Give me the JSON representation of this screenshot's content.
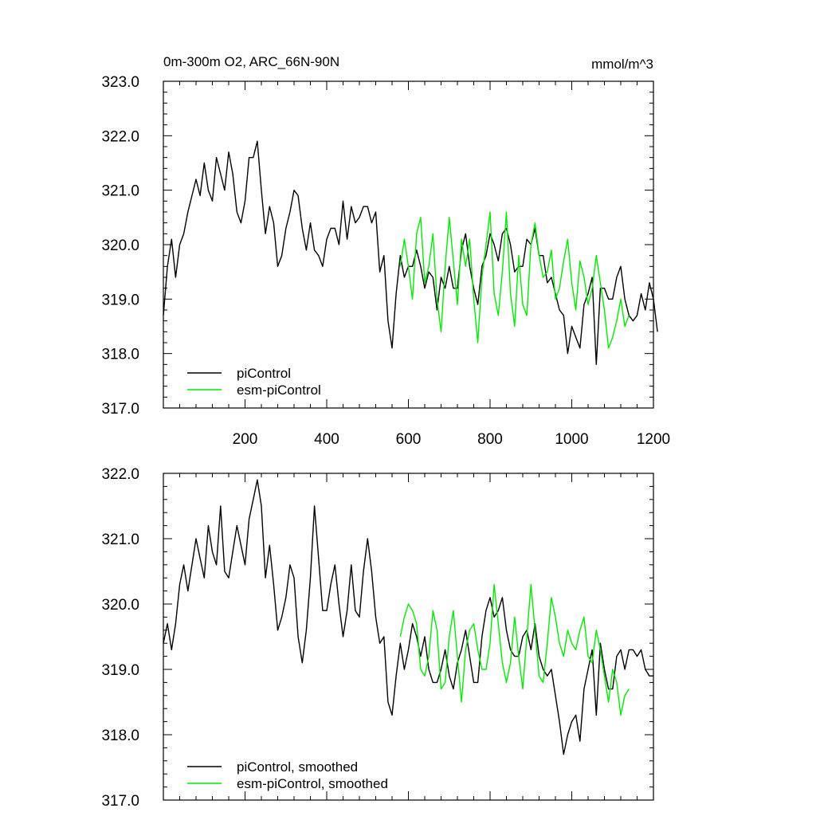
{
  "chart_data": [
    {
      "type": "line",
      "title": "0m-300m O2, ARC_66N-90N",
      "units": "mmol/m^3",
      "xlim": [
        0,
        1200
      ],
      "ylim": [
        317.0,
        323.0
      ],
      "x_ticks": [
        "200",
        "400",
        "600",
        "800",
        "1000",
        "1200"
      ],
      "y_ticks": [
        "317.0",
        "318.0",
        "319.0",
        "320.0",
        "321.0",
        "322.0",
        "323.0"
      ],
      "legend_position": "bottom-left",
      "series": [
        {
          "name": "piControl",
          "color": "#000000",
          "x_start": 0,
          "x_step": 10,
          "values": [
            318.7,
            319.6,
            320.1,
            319.4,
            320.0,
            320.2,
            320.6,
            320.9,
            321.2,
            320.9,
            321.5,
            321.0,
            320.8,
            321.6,
            321.3,
            321.0,
            321.7,
            321.3,
            320.6,
            320.4,
            320.8,
            321.6,
            321.6,
            321.9,
            321.0,
            320.2,
            320.7,
            320.4,
            319.6,
            319.8,
            320.3,
            320.6,
            321.0,
            320.9,
            320.3,
            319.9,
            320.4,
            319.9,
            319.8,
            319.6,
            320.1,
            320.3,
            320.3,
            320.0,
            320.8,
            320.1,
            320.7,
            320.4,
            320.5,
            320.7,
            320.7,
            320.4,
            320.6,
            319.5,
            319.8,
            318.6,
            318.1,
            319.1,
            319.8,
            319.4,
            319.6,
            319.6,
            319.9,
            319.6,
            319.2,
            319.5,
            319.4,
            318.8,
            319.4,
            319.2,
            319.6,
            319.2,
            319.2,
            319.9,
            320.2,
            319.6,
            319.2,
            318.9,
            319.6,
            319.8,
            320.2,
            320.0,
            319.7,
            320.2,
            320.3,
            320.0,
            319.5,
            319.6,
            319.6,
            320.1,
            320.0,
            320.3,
            319.8,
            319.8,
            319.3,
            319.4,
            319.1,
            318.8,
            318.7,
            318.0,
            318.5,
            318.3,
            318.1,
            318.9,
            319.1,
            319.4,
            317.8,
            319.2,
            319.2,
            319.0,
            319.0,
            319.4,
            319.6,
            319.0,
            318.7,
            318.6,
            318.7,
            319.1,
            318.8,
            319.3,
            319.0,
            318.4
          ],
          "description_note": ""
        },
        {
          "name": "esm-piControl",
          "color": "#00ee00",
          "x_start": 580,
          "x_step": 10,
          "values": [
            319.6,
            320.1,
            319.6,
            319.0,
            320.2,
            320.5,
            319.3,
            319.6,
            320.2,
            319.0,
            318.4,
            319.6,
            320.5,
            319.7,
            318.9,
            320.1,
            319.6,
            320.1,
            319.0,
            318.2,
            319.4,
            320.0,
            320.6,
            319.1,
            318.7,
            319.5,
            320.6,
            319.1,
            318.5,
            319.8,
            318.9,
            318.7,
            320.0,
            320.4,
            319.8,
            319.4,
            319.5,
            319.9,
            319.0,
            319.2,
            319.7,
            320.1,
            319.3,
            318.8,
            319.7,
            319.4,
            318.9,
            319.2,
            319.8,
            319.3,
            318.8,
            318.1,
            318.3,
            318.6,
            319.0,
            318.5,
            318.7
          ]
        }
      ]
    },
    {
      "type": "line",
      "title": "",
      "xlim": [
        0,
        1200
      ],
      "ylim": [
        317.0,
        322.0
      ],
      "y_ticks": [
        "317.0",
        "318.0",
        "319.0",
        "320.0",
        "321.0",
        "322.0"
      ],
      "legend_position": "bottom-left",
      "series": [
        {
          "name": "piControl, smoothed",
          "color": "#000000",
          "x_start": 0,
          "x_step": 10,
          "values": [
            319.4,
            319.7,
            319.3,
            319.7,
            320.3,
            320.6,
            320.2,
            320.6,
            321.0,
            320.7,
            320.4,
            321.2,
            320.8,
            320.6,
            321.5,
            320.5,
            320.4,
            320.8,
            321.2,
            320.9,
            320.6,
            321.3,
            321.6,
            321.9,
            321.5,
            320.4,
            320.9,
            320.3,
            319.6,
            319.8,
            320.1,
            320.6,
            320.4,
            319.5,
            319.1,
            319.6,
            320.4,
            321.5,
            320.7,
            319.9,
            319.9,
            320.3,
            320.6,
            320.0,
            319.5,
            319.9,
            320.6,
            319.9,
            319.8,
            320.5,
            321.0,
            320.5,
            319.8,
            319.4,
            319.5,
            318.5,
            318.3,
            318.9,
            319.4,
            319.0,
            319.3,
            319.7,
            319.5,
            319.2,
            319.5,
            319.0,
            318.8,
            318.8,
            319.0,
            319.3,
            318.9,
            318.7,
            319.1,
            319.3,
            319.6,
            319.2,
            318.8,
            318.8,
            319.5,
            319.9,
            320.1,
            319.8,
            319.9,
            320.1,
            319.6,
            319.3,
            319.2,
            319.2,
            319.5,
            319.6,
            319.3,
            319.7,
            319.2,
            319.0,
            318.9,
            319.0,
            318.6,
            318.2,
            317.7,
            318.0,
            318.2,
            318.3,
            317.9,
            318.7,
            319.0,
            319.3,
            318.3,
            319.4,
            319.0,
            318.7,
            318.7,
            319.2,
            319.3,
            319.0,
            319.3,
            319.3,
            319.2,
            319.3,
            319.0,
            318.9,
            318.9
          ]
        },
        {
          "name": "esm-piControl, smoothed",
          "color": "#00ee00",
          "x_start": 580,
          "x_step": 10,
          "values": [
            319.5,
            319.8,
            320.0,
            319.9,
            319.7,
            319.0,
            318.9,
            319.2,
            319.9,
            319.6,
            318.7,
            318.8,
            319.5,
            319.9,
            319.2,
            318.5,
            319.3,
            319.6,
            319.7,
            319.3,
            319.0,
            319.0,
            319.4,
            320.3,
            319.7,
            319.1,
            318.8,
            319.1,
            319.8,
            319.2,
            318.7,
            319.5,
            320.3,
            319.6,
            318.9,
            318.8,
            319.4,
            320.1,
            319.8,
            319.4,
            319.2,
            319.6,
            319.4,
            319.3,
            319.6,
            319.8,
            319.2,
            319.1,
            319.6,
            319.3,
            318.9,
            318.5,
            319.0,
            318.8,
            318.3,
            318.6,
            318.7
          ]
        }
      ]
    }
  ]
}
